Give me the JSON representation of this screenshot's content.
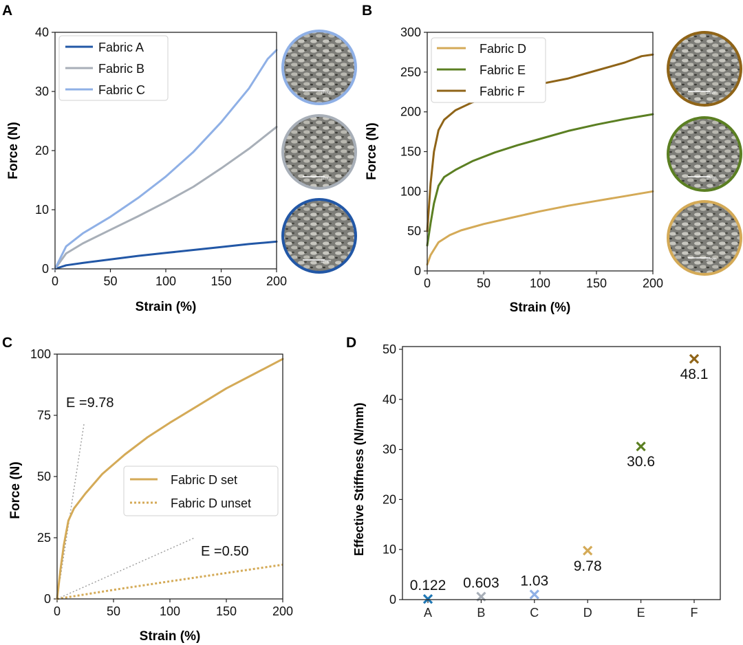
{
  "colors": {
    "A": "#2257a6",
    "B": "#a8afb8",
    "C": "#8fb0e6",
    "D": "#d4aa57",
    "E": "#5b7f22",
    "F": "#8f6418",
    "dotted_guide": "#9a9a9a",
    "axis": "#222222"
  },
  "icons": {
    "micrograph": "circular-fabric-micrograph",
    "scale_bar_label": "1mm"
  },
  "chart_data": [
    {
      "panel": "A",
      "type": "line",
      "xlabel": "Strain (%)",
      "ylabel": "Force (N)",
      "xlim": [
        0,
        200
      ],
      "ylim": [
        0,
        40
      ],
      "xticks": [
        0,
        50,
        100,
        150,
        200
      ],
      "yticks": [
        0,
        10,
        20,
        30,
        40
      ],
      "legend_position": "top-left",
      "series": [
        {
          "name": "Fabric A",
          "color_key": "A",
          "x": [
            0,
            10,
            25,
            50,
            75,
            100,
            125,
            150,
            175,
            200
          ],
          "y": [
            0,
            0.6,
            1.0,
            1.6,
            2.2,
            2.7,
            3.2,
            3.7,
            4.2,
            4.6
          ]
        },
        {
          "name": "Fabric B",
          "color_key": "B",
          "x": [
            0,
            10,
            25,
            50,
            75,
            100,
            125,
            150,
            175,
            200
          ],
          "y": [
            0,
            2.6,
            4.3,
            6.6,
            8.9,
            11.3,
            13.9,
            17.0,
            20.3,
            24.0
          ]
        },
        {
          "name": "Fabric C",
          "color_key": "C",
          "x": [
            0,
            10,
            25,
            50,
            75,
            100,
            125,
            150,
            175,
            192,
            200
          ],
          "y": [
            0,
            3.8,
            6.0,
            8.8,
            12.0,
            15.6,
            19.8,
            24.8,
            30.5,
            35.5,
            37.0
          ]
        }
      ],
      "micrograph_borders": [
        "C",
        "B",
        "A"
      ]
    },
    {
      "panel": "B",
      "type": "line",
      "xlabel": "Strain (%)",
      "ylabel": "Force (N)",
      "xlim": [
        0,
        200
      ],
      "ylim": [
        0,
        300
      ],
      "xticks": [
        0,
        50,
        100,
        150,
        200
      ],
      "yticks": [
        0,
        50,
        100,
        150,
        200,
        250,
        300
      ],
      "legend_position": "top-left",
      "series": [
        {
          "name": "Fabric D",
          "color_key": "D",
          "x": [
            0,
            3,
            10,
            20,
            30,
            50,
            75,
            100,
            125,
            150,
            175,
            200
          ],
          "y": [
            8,
            20,
            36,
            45,
            51,
            59,
            67,
            75,
            82,
            88,
            94,
            100
          ]
        },
        {
          "name": "Fabric E",
          "color_key": "E",
          "x": [
            0,
            3,
            6,
            10,
            15,
            25,
            40,
            60,
            80,
            100,
            125,
            150,
            175,
            200
          ],
          "y": [
            32,
            60,
            85,
            107,
            118,
            127,
            138,
            149,
            158,
            166,
            176,
            184,
            191,
            197
          ]
        },
        {
          "name": "Fabric F",
          "color_key": "F",
          "x": [
            0,
            3,
            6,
            10,
            15,
            25,
            40,
            60,
            80,
            100,
            125,
            150,
            175,
            190,
            200
          ],
          "y": [
            50,
            110,
            150,
            177,
            190,
            202,
            212,
            221,
            228,
            235,
            242,
            252,
            262,
            270,
            272
          ]
        }
      ],
      "micrograph_borders": [
        "F",
        "E",
        "D"
      ]
    },
    {
      "panel": "C",
      "type": "line",
      "xlabel": "Strain (%)",
      "ylabel": "Force (N)",
      "xlim": [
        0,
        200
      ],
      "ylim": [
        0,
        100
      ],
      "xticks": [
        0,
        50,
        100,
        150,
        200
      ],
      "yticks": [
        0,
        25,
        50,
        75,
        100
      ],
      "legend_position": "center-right",
      "series": [
        {
          "name": "Fabric D set",
          "color_key": "D",
          "style": "solid",
          "x": [
            0,
            3,
            6,
            10,
            15,
            25,
            40,
            60,
            80,
            100,
            125,
            150,
            175,
            200
          ],
          "y": [
            0,
            12,
            22,
            32,
            37,
            43,
            51,
            59,
            66,
            72,
            79,
            86,
            92,
            98
          ]
        },
        {
          "name": "Fabric D unset",
          "color_key": "D",
          "style": "dotted",
          "x": [
            0,
            50,
            100,
            150,
            200
          ],
          "y": [
            0,
            3.7,
            7.2,
            10.6,
            14.0
          ]
        }
      ],
      "guides": [
        {
          "label": "E =9.78",
          "x": [
            0,
            24
          ],
          "y": [
            0,
            72
          ]
        },
        {
          "label": "E =0.50",
          "x": [
            0,
            122
          ],
          "y": [
            0,
            25
          ]
        }
      ]
    },
    {
      "panel": "D",
      "type": "scatter",
      "ylabel": "Effective Stiffness (N/mm)",
      "categories": [
        "A",
        "B",
        "C",
        "D",
        "E",
        "F"
      ],
      "values": [
        0.122,
        0.603,
        1.03,
        9.78,
        30.6,
        48.1
      ],
      "labels": [
        "0.122",
        "0.603",
        "1.03",
        "9.78",
        "30.6",
        "48.1"
      ],
      "label_positions": [
        "above",
        "above",
        "above",
        "below",
        "below",
        "below"
      ],
      "point_colors": [
        "#1f77b4",
        "B",
        "C",
        "D",
        "E",
        "F"
      ],
      "ylim": [
        0,
        50
      ],
      "yticks": [
        0,
        10,
        20,
        30,
        40,
        50
      ],
      "marker": "x"
    }
  ],
  "panel_letters": [
    "A",
    "B",
    "C",
    "D"
  ]
}
